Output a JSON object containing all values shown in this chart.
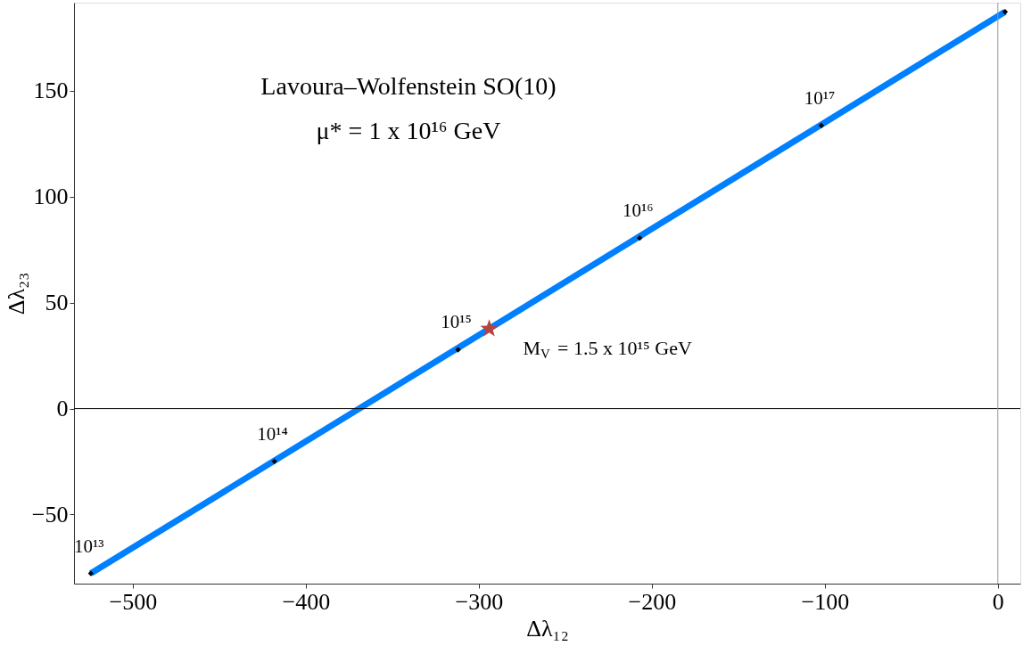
{
  "chart_data": {
    "type": "line",
    "xlabel": "Δλ₁₂",
    "ylabel": "Δλ₂₃",
    "xlim": [
      -534,
      13
    ],
    "ylim": [
      -82.6,
      191.6
    ],
    "xticks": [
      -500,
      -400,
      -300,
      -200,
      -100,
      0
    ],
    "yticks": [
      -50,
      0,
      50,
      100,
      150
    ],
    "grid": false,
    "series": [
      {
        "color": "#0080ff",
        "x": [
          -524.3,
          4.2
        ],
        "values": [
          -77.8,
          187.3
        ],
        "marker": "none",
        "line_style": "solid"
      },
      {
        "type": "scatter",
        "color": "#000000",
        "x": [
          -524.3,
          -418.2,
          -312,
          -207,
          -102,
          4.2
        ],
        "values": [
          -77.8,
          -24.9,
          27.8,
          80.5,
          133.6,
          187.3
        ],
        "marker": "diamond"
      },
      {
        "type": "scatter",
        "color": "#b5443f",
        "x": [
          -294
        ],
        "values": [
          37.7
        ],
        "marker": "star"
      }
    ],
    "ref_lines": [
      {
        "axis": "y",
        "value": 0,
        "color": "#000000"
      },
      {
        "axis": "x",
        "value": 0,
        "color": "#999999"
      }
    ],
    "annotations": [
      "Lavoura–Wolfenstein SO(10)",
      "μ* = 1 x 10¹⁶ GeV",
      {
        "text": "10¹³",
        "x": -524.3,
        "y": -77.8
      },
      {
        "text": "10¹⁴",
        "x": -418.2,
        "y": -24.9
      },
      {
        "text": "10¹⁵",
        "x": -312,
        "y": 27.8
      },
      {
        "text": "10¹⁶",
        "x": -207,
        "y": 80.5
      },
      {
        "text": "10¹⁷",
        "x": -102,
        "y": 133.6
      },
      {
        "text": "M$_{V}$ = 1.5 x 10¹⁵ GeV",
        "x": -294,
        "y": 37.7
      }
    ]
  }
}
